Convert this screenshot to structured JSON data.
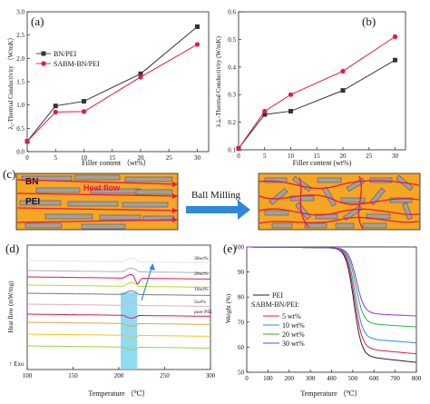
{
  "figure": {
    "panels": [
      {
        "id": "a",
        "panel_label": "(a)",
        "type": "line",
        "xlabel": "Filler content （wt%）",
        "ylabel": "λ₁-Thermal Conductivity （W/mK）",
        "xlim": [
          0,
          32
        ],
        "ylim": [
          0,
          3.0
        ],
        "xticks": [
          0,
          5,
          10,
          15,
          20,
          25,
          30
        ],
        "yticks": [
          0.0,
          0.5,
          1.0,
          1.5,
          2.0,
          2.5,
          3.0
        ],
        "legend_position": "top-left",
        "series": [
          {
            "name": "BN/PEI",
            "color": "#333333",
            "marker": "square",
            "x": [
              0,
              5,
              10,
              20,
              30
            ],
            "y": [
              0.22,
              0.98,
              1.08,
              1.67,
              2.68
            ]
          },
          {
            "name": "SABM-BN/PEI",
            "color": "#e8174a",
            "marker": "circle",
            "x": [
              0,
              5,
              10,
              20,
              30
            ],
            "y": [
              0.22,
              0.85,
              0.86,
              1.6,
              2.3
            ]
          }
        ]
      },
      {
        "id": "b",
        "panel_label": "(b)",
        "type": "line",
        "xlabel": "Filler content (wt%)",
        "ylabel": "λ⊥-Thermal Conductivity (W/mK)",
        "xlim": [
          0,
          32
        ],
        "ylim": [
          0.1,
          0.6
        ],
        "xticks": [
          0,
          5,
          10,
          15,
          20,
          25,
          30
        ],
        "yticks": [
          0.1,
          0.2,
          0.3,
          0.4,
          0.5,
          0.6
        ],
        "series": [
          {
            "name": "",
            "color": "#333333",
            "marker": "square",
            "x": [
              0,
              5,
              10,
              20,
              30
            ],
            "y": [
              0.105,
              0.228,
              0.24,
              0.315,
              0.425
            ]
          },
          {
            "name": "",
            "color": "#e8174a",
            "marker": "circle",
            "x": [
              0,
              5,
              10,
              20,
              30
            ],
            "y": [
              0.105,
              0.24,
              0.3,
              0.385,
              0.51
            ]
          }
        ]
      },
      {
        "id": "c",
        "panel_label": "(c)",
        "schematic": {
          "bn_label": "BN",
          "pei_label": "PEI",
          "flow_label": "Heat flow",
          "process_label": "Ball Milling",
          "matrix_color": "#f5a623",
          "filler_color": "#a0a0a0",
          "flow_color": "#e8174a",
          "arrow_color": "#2e88d8"
        }
      },
      {
        "id": "d",
        "panel_label": "(d)",
        "type": "line",
        "xlabel": "Temperature （℃）",
        "ylabel": "Heat flow (mW/mg)",
        "exo_label": "↑ Exo",
        "xlim": [
          100,
          300
        ],
        "xticks": [
          100,
          150,
          200,
          250,
          300
        ],
        "highlight_x_range": [
          202,
          220
        ],
        "highlight_color": "#7fd3f0",
        "arrow_color": "#2e88d8",
        "curve_labels": [
          "30wt%",
          "20wt%",
          "10wt%",
          "5wt%",
          "pure PEI"
        ],
        "series": [
          {
            "name": "30wt%",
            "color": "#e6e6e6",
            "offset": 5
          },
          {
            "name": "30wt%",
            "color": "#b0b0b0",
            "offset": 4
          },
          {
            "name": "20wt%",
            "color": "#e8174a",
            "offset": 3
          },
          {
            "name": "20wt%",
            "color": "#bcd52c",
            "offset": 2
          },
          {
            "name": "10wt%",
            "color": "#7a7a7a",
            "offset": 1
          },
          {
            "name": "10wt%",
            "color": "#e0b0c0",
            "offset": 0
          },
          {
            "name": "5wt%",
            "color": "#e8174a",
            "offset": -1
          },
          {
            "name": "5wt%",
            "color": "#d6a84a",
            "offset": -2
          },
          {
            "name": "pure PEI",
            "color": "#f5c21b",
            "offset": -3
          },
          {
            "name": "pure PEI",
            "color": "#9bd43a",
            "offset": -4
          }
        ]
      },
      {
        "id": "e",
        "panel_label": "(e)",
        "type": "line",
        "xlabel": "Temperature （℃）",
        "ylabel": "Weight (%)",
        "xlim": [
          0,
          800
        ],
        "ylim": [
          50,
          100
        ],
        "xticks": [
          0,
          100,
          200,
          300,
          400,
          500,
          600,
          700,
          800
        ],
        "yticks": [
          50,
          60,
          70,
          80,
          90,
          100
        ],
        "legend_title": "SABM-BN/PEI:",
        "legend_position": "bottom-left",
        "series": [
          {
            "name": "PEI",
            "color": "#222222",
            "residue": 57
          },
          {
            "name": "5 wt%",
            "color": "#e8174a",
            "residue": 60
          },
          {
            "name": "10 wt%",
            "color": "#2e88d8",
            "residue": 64
          },
          {
            "name": "20 wt%",
            "color": "#1cba4a",
            "residue": 70
          },
          {
            "name": "30 wt%",
            "color": "#a32bd6",
            "residue": 74
          }
        ]
      }
    ]
  },
  "chart_data": [
    {
      "type": "line",
      "title": "",
      "xlabel": "Filler content （wt%）",
      "ylabel": "λ₁-Thermal Conductivity （W/mK）",
      "x": [
        0,
        5,
        10,
        20,
        30
      ],
      "series": [
        {
          "name": "BN/PEI",
          "values": [
            0.22,
            0.98,
            1.08,
            1.67,
            2.68
          ]
        },
        {
          "name": "SABM-BN/PEI",
          "values": [
            0.22,
            0.85,
            0.86,
            1.6,
            2.3
          ]
        }
      ],
      "ylim": [
        0,
        3.0
      ],
      "grid": false,
      "legend": "top-left"
    },
    {
      "type": "line",
      "title": "",
      "xlabel": "Filler content (wt%)",
      "ylabel": "λ⊥-Thermal Conductivity (W/mK)",
      "x": [
        0,
        5,
        10,
        20,
        30
      ],
      "series": [
        {
          "name": "",
          "values": [
            0.105,
            0.228,
            0.24,
            0.315,
            0.425
          ]
        },
        {
          "name": "",
          "values": [
            0.105,
            0.24,
            0.3,
            0.385,
            0.51
          ]
        }
      ],
      "ylim": [
        0.1,
        0.6
      ],
      "grid": false
    },
    {
      "type": "line",
      "title": "",
      "xlabel": "Temperature （℃）",
      "ylabel": "Heat flow (mW/mg)",
      "xlim": [
        100,
        300
      ],
      "grid": false
    },
    {
      "type": "line",
      "title": "",
      "xlabel": "Temperature （℃）",
      "ylabel": "Weight (%)",
      "xlim": [
        0,
        800
      ],
      "ylim": [
        50,
        100
      ],
      "series": [
        {
          "name": "PEI"
        },
        {
          "name": "5 wt%"
        },
        {
          "name": "10 wt%"
        },
        {
          "name": "20 wt%"
        },
        {
          "name": "30 wt%"
        }
      ],
      "grid": false,
      "legend": "bottom-left"
    }
  ]
}
